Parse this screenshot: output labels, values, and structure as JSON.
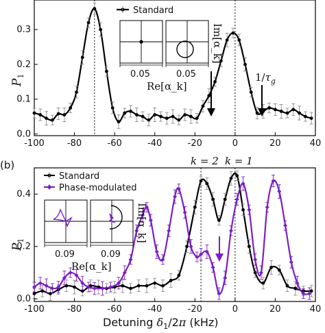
{
  "chart_data": [
    {
      "panel": "(a)",
      "type": "line",
      "ylabel": "P_1",
      "xlim": [
        -100,
        40
      ],
      "ylim": [
        -0.005,
        0.385
      ],
      "xticks": [
        -100,
        -80,
        -60,
        -40,
        -20,
        0,
        20,
        40
      ],
      "yticks": [
        0.0,
        0.1,
        0.2,
        0.3
      ],
      "ytick_labels": [
        "0.0",
        "0.1",
        "0.2",
        "0.3"
      ],
      "vlines": [
        -70,
        0
      ],
      "legend": {
        "position": "top-center",
        "label": "Standard"
      },
      "series": [
        {
          "name": "Standard",
          "color": "#000000",
          "points": [
            [
              -100,
              0.06
            ],
            [
              -97,
              0.055
            ],
            [
              -94,
              0.045
            ],
            [
              -91,
              0.04
            ],
            [
              -88,
              0.058
            ],
            [
              -85,
              0.055
            ],
            [
              -82,
              0.075
            ],
            [
              -79,
              0.12
            ],
            [
              -76,
              0.22
            ],
            [
              -73,
              0.32
            ],
            [
              -70,
              0.36
            ],
            [
              -67,
              0.3
            ],
            [
              -64,
              0.18
            ],
            [
              -61,
              0.075
            ],
            [
              -58,
              0.035
            ],
            [
              -55,
              0.06
            ],
            [
              -52,
              0.065
            ],
            [
              -49,
              0.055
            ],
            [
              -46,
              0.05
            ],
            [
              -43,
              0.04
            ],
            [
              -40,
              0.055
            ],
            [
              -37,
              0.05
            ],
            [
              -34,
              0.045
            ],
            [
              -31,
              0.05
            ],
            [
              -28,
              0.04
            ],
            [
              -25,
              0.055
            ],
            [
              -22,
              0.05
            ],
            [
              -19,
              0.045
            ],
            [
              -16,
              0.08
            ],
            [
              -13,
              0.11
            ],
            [
              -10,
              0.15
            ],
            [
              -7,
              0.21
            ],
            [
              -4,
              0.27
            ],
            [
              -1,
              0.29
            ],
            [
              2,
              0.27
            ],
            [
              5,
              0.2
            ],
            [
              8,
              0.12
            ],
            [
              11,
              0.06
            ],
            [
              14,
              0.065
            ],
            [
              17,
              0.075
            ],
            [
              20,
              0.07
            ],
            [
              23,
              0.065
            ],
            [
              26,
              0.06
            ],
            [
              29,
              0.07
            ],
            [
              32,
              0.06
            ],
            [
              35,
              0.05
            ],
            [
              38,
              0.045
            ]
          ]
        }
      ],
      "annotations": {
        "tau_label": "1/τ_g"
      },
      "inset": {
        "tick": "0.05",
        "tick2": "0.05",
        "xlabel": "Re[α_k]",
        "ylabel": "Im[α_k]"
      }
    },
    {
      "panel": "(b)",
      "type": "line",
      "ylabel": "P_1",
      "xlabel": "Detuning δ_1/2π (kHz)",
      "xlim": [
        -100,
        40
      ],
      "ylim": [
        -0.01,
        0.5
      ],
      "xticks": [
        -100,
        -80,
        -60,
        -40,
        -20,
        0,
        20,
        40
      ],
      "yticks": [
        0.0,
        0.2,
        0.4
      ],
      "ytick_labels": [
        "0.0",
        "0.2",
        "0.4"
      ],
      "vlines": [
        -17,
        0
      ],
      "top_labels": [
        "k = 2",
        "k = 1"
      ],
      "series": [
        {
          "name": "Standard",
          "color": "#000000",
          "points": [
            [
              -100,
              0.02
            ],
            [
              -96,
              0.03
            ],
            [
              -92,
              0.02
            ],
            [
              -88,
              0.035
            ],
            [
              -84,
              0.05
            ],
            [
              -80,
              0.045
            ],
            [
              -76,
              0.03
            ],
            [
              -72,
              0.05
            ],
            [
              -68,
              0.045
            ],
            [
              -64,
              0.04
            ],
            [
              -60,
              0.045
            ],
            [
              -56,
              0.05
            ],
            [
              -52,
              0.04
            ],
            [
              -48,
              0.05
            ],
            [
              -44,
              0.05
            ],
            [
              -40,
              0.06
            ],
            [
              -36,
              0.05
            ],
            [
              -32,
              0.07
            ],
            [
              -28,
              0.09
            ],
            [
              -24,
              0.2
            ],
            [
              -20,
              0.35
            ],
            [
              -17,
              0.45
            ],
            [
              -14,
              0.44
            ],
            [
              -11,
              0.38
            ],
            [
              -8,
              0.3
            ],
            [
              -5,
              0.38
            ],
            [
              -2,
              0.46
            ],
            [
              1,
              0.47
            ],
            [
              4,
              0.34
            ],
            [
              7,
              0.2
            ],
            [
              10,
              0.1
            ],
            [
              14,
              0.06
            ],
            [
              18,
              0.12
            ],
            [
              22,
              0.11
            ],
            [
              26,
              0.05
            ],
            [
              30,
              0.04
            ],
            [
              34,
              0.03
            ],
            [
              38,
              0.03
            ]
          ]
        },
        {
          "name": "Phase-modulated",
          "color": "#7a1fc4",
          "points": [
            [
              -100,
              0.045
            ],
            [
              -97,
              0.06
            ],
            [
              -94,
              0.05
            ],
            [
              -91,
              0.04
            ],
            [
              -88,
              0.045
            ],
            [
              -85,
              0.08
            ],
            [
              -82,
              0.1
            ],
            [
              -79,
              0.09
            ],
            [
              -76,
              0.06
            ],
            [
              -73,
              0.045
            ],
            [
              -70,
              0.04
            ],
            [
              -66,
              0.04
            ],
            [
              -62,
              0.045
            ],
            [
              -58,
              0.06
            ],
            [
              -55,
              0.1
            ],
            [
              -52,
              0.15
            ],
            [
              -49,
              0.26
            ],
            [
              -46,
              0.32
            ],
            [
              -44,
              0.35
            ],
            [
              -42,
              0.3
            ],
            [
              -39,
              0.18
            ],
            [
              -36,
              0.15
            ],
            [
              -33,
              0.26
            ],
            [
              -30,
              0.39
            ],
            [
              -28,
              0.42
            ],
            [
              -25,
              0.33
            ],
            [
              -22,
              0.2
            ],
            [
              -19,
              0.16
            ],
            [
              -17,
              0.17
            ],
            [
              -14,
              0.18
            ],
            [
              -11,
              0.12
            ],
            [
              -8,
              0.02
            ],
            [
              -5,
              0.08
            ],
            [
              -2,
              0.26
            ],
            [
              1,
              0.38
            ],
            [
              4,
              0.44
            ],
            [
              7,
              0.34
            ],
            [
              10,
              0.15
            ],
            [
              13,
              0.1
            ],
            [
              16,
              0.35
            ],
            [
              19,
              0.45
            ],
            [
              22,
              0.41
            ],
            [
              25,
              0.28
            ],
            [
              28,
              0.14
            ],
            [
              31,
              0.06
            ],
            [
              34,
              0.02
            ],
            [
              37,
              0.02
            ]
          ]
        }
      ],
      "inset": {
        "tick": "0.09",
        "tick2": "0.09",
        "xlabel": "Re[α_k]",
        "ylabel": "Im[α_k]"
      }
    }
  ],
  "colors": {
    "standard": "#000000",
    "phase_modulated": "#7a1fc4",
    "errorbar_grey": "#8c8c8c"
  }
}
